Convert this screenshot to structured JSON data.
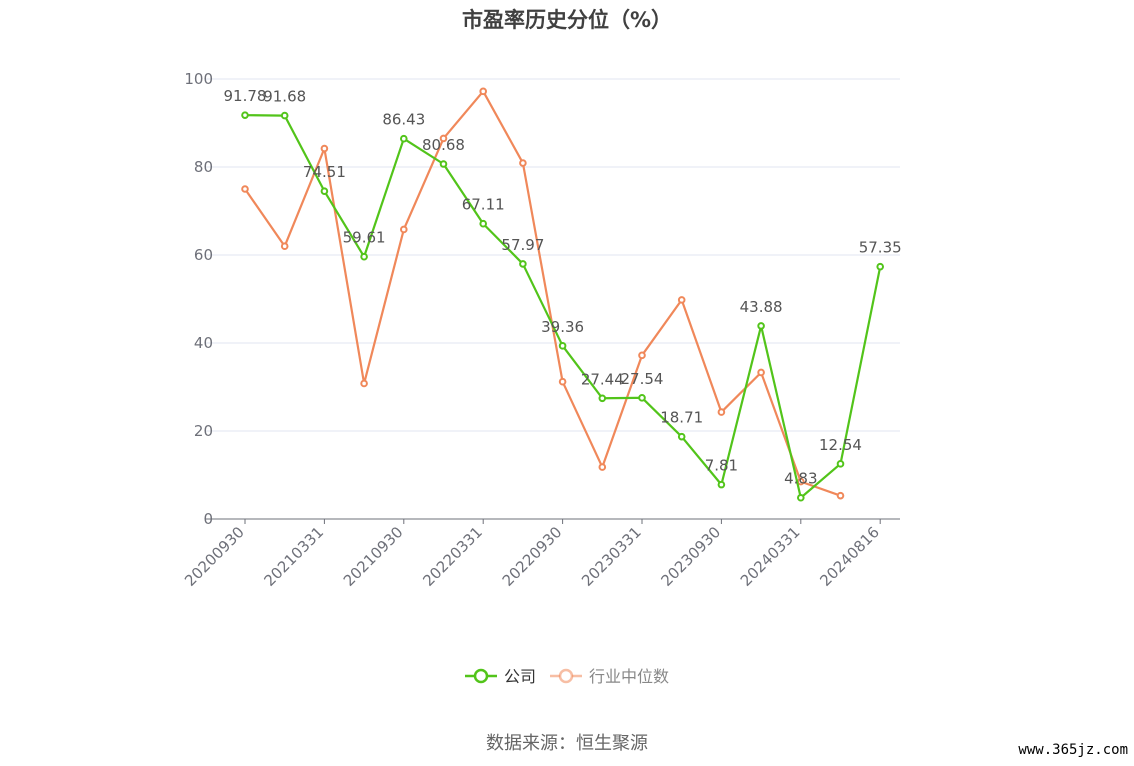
{
  "chart_data": {
    "type": "line",
    "title": "市盈率历史分位（%）",
    "x": [
      "20200930",
      "20201231",
      "20210331",
      "20210630",
      "20210930",
      "20211231",
      "20220331",
      "20220630",
      "20220930",
      "20221231",
      "20230331",
      "20230630",
      "20230930",
      "20231231",
      "20240331",
      "20240630",
      "20240816"
    ],
    "xticks": [
      "20200930",
      "20210331",
      "20210930",
      "20220331",
      "20220930",
      "20230331",
      "20230930",
      "20240331",
      "20240816"
    ],
    "yticks": [
      "0",
      "20",
      "40",
      "60",
      "80",
      "100"
    ],
    "ylim": [
      0,
      100
    ],
    "grid": true,
    "legend_position": "bottom",
    "series": [
      {
        "name": "公司",
        "color": "#52c41a",
        "values": [
          91.78,
          91.68,
          74.51,
          59.61,
          86.43,
          80.68,
          67.11,
          57.97,
          39.36,
          27.44,
          27.54,
          18.71,
          7.81,
          43.88,
          4.83,
          12.54,
          57.35
        ],
        "labels": [
          "91.78",
          "91.68",
          "74.51",
          "59.61",
          "86.43",
          "80.68",
          "67.11",
          "57.97",
          "39.36",
          "27.44",
          "27.54",
          "18.71",
          "7.81",
          "43.88",
          "4.83",
          "12.54",
          "57.35"
        ]
      },
      {
        "name": "行业中位数",
        "color": "#f0885a",
        "values": [
          75.0,
          62.0,
          84.2,
          30.8,
          65.8,
          86.5,
          97.2,
          80.9,
          31.2,
          11.8,
          37.2,
          49.8,
          24.3,
          33.3,
          8.5,
          5.3,
          null
        ]
      }
    ]
  },
  "footer": {
    "source": "数据来源：恒生聚源",
    "watermark": "www.365jz.com"
  }
}
